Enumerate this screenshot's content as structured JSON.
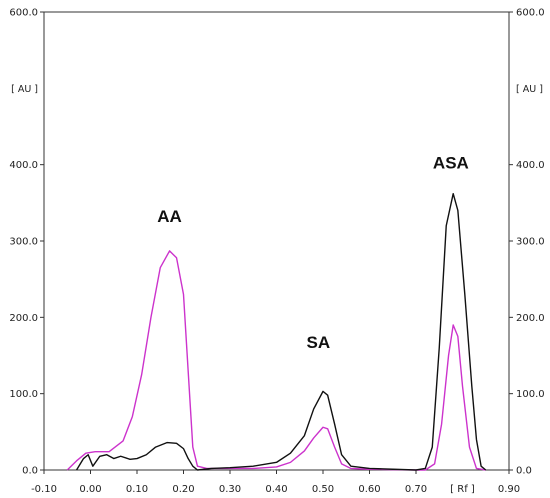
{
  "chart_data": {
    "type": "line",
    "xlabel": "[ Rf ]",
    "ylabel_left": "[ AU ]",
    "ylabel_right": "[ AU ]",
    "xlim": [
      -0.1,
      0.9
    ],
    "ylim": [
      0,
      600
    ],
    "x_ticks": [
      -0.1,
      0.0,
      0.1,
      0.2,
      0.3,
      0.4,
      0.5,
      0.6,
      0.7,
      0.9
    ],
    "x_tick_labels": [
      "-0.10",
      "0.00",
      "0.10",
      "0.20",
      "0.30",
      "0.40",
      "0.50",
      "0.60",
      "0.70",
      "0.90"
    ],
    "y_ticks": [
      0,
      100,
      200,
      300,
      400,
      600
    ],
    "y_tick_labels": [
      "0.0",
      "100.0",
      "200.0",
      "300.0",
      "400.0",
      "600.0"
    ],
    "annotations": [
      {
        "text": "AA",
        "x": 0.17,
        "y": 325
      },
      {
        "text": "SA",
        "x": 0.49,
        "y": 160
      },
      {
        "text": "ASA",
        "x": 0.775,
        "y": 395
      }
    ],
    "series": [
      {
        "color": "#cc33cc",
        "points": [
          [
            -0.05,
            0
          ],
          [
            -0.03,
            12
          ],
          [
            -0.01,
            22
          ],
          [
            0.01,
            24
          ],
          [
            0.04,
            24
          ],
          [
            0.07,
            38
          ],
          [
            0.09,
            70
          ],
          [
            0.11,
            125
          ],
          [
            0.13,
            200
          ],
          [
            0.15,
            265
          ],
          [
            0.17,
            287
          ],
          [
            0.185,
            278
          ],
          [
            0.2,
            230
          ],
          [
            0.21,
            130
          ],
          [
            0.22,
            30
          ],
          [
            0.23,
            5
          ],
          [
            0.25,
            2
          ],
          [
            0.3,
            2
          ],
          [
            0.35,
            2
          ],
          [
            0.4,
            4
          ],
          [
            0.43,
            10
          ],
          [
            0.46,
            25
          ],
          [
            0.48,
            42
          ],
          [
            0.5,
            56
          ],
          [
            0.51,
            54
          ],
          [
            0.525,
            30
          ],
          [
            0.54,
            8
          ],
          [
            0.56,
            2
          ],
          [
            0.6,
            1
          ],
          [
            0.7,
            0
          ],
          [
            0.72,
            0
          ],
          [
            0.74,
            8
          ],
          [
            0.755,
            60
          ],
          [
            0.77,
            150
          ],
          [
            0.78,
            190
          ],
          [
            0.79,
            175
          ],
          [
            0.8,
            110
          ],
          [
            0.815,
            30
          ],
          [
            0.83,
            2
          ],
          [
            0.85,
            0
          ]
        ]
      },
      {
        "color": "#111111",
        "points": [
          [
            -0.03,
            0
          ],
          [
            -0.015,
            15
          ],
          [
            -0.005,
            20
          ],
          [
            0.005,
            5
          ],
          [
            0.02,
            18
          ],
          [
            0.035,
            20
          ],
          [
            0.05,
            15
          ],
          [
            0.065,
            18
          ],
          [
            0.085,
            14
          ],
          [
            0.1,
            15
          ],
          [
            0.12,
            20
          ],
          [
            0.14,
            30
          ],
          [
            0.165,
            36
          ],
          [
            0.185,
            35
          ],
          [
            0.2,
            28
          ],
          [
            0.21,
            15
          ],
          [
            0.22,
            5
          ],
          [
            0.23,
            0
          ],
          [
            0.26,
            2
          ],
          [
            0.3,
            3
          ],
          [
            0.35,
            5
          ],
          [
            0.4,
            10
          ],
          [
            0.43,
            22
          ],
          [
            0.46,
            45
          ],
          [
            0.48,
            80
          ],
          [
            0.5,
            103
          ],
          [
            0.51,
            98
          ],
          [
            0.525,
            60
          ],
          [
            0.54,
            20
          ],
          [
            0.56,
            5
          ],
          [
            0.6,
            2
          ],
          [
            0.65,
            1
          ],
          [
            0.7,
            0
          ],
          [
            0.72,
            2
          ],
          [
            0.735,
            30
          ],
          [
            0.75,
            160
          ],
          [
            0.765,
            320
          ],
          [
            0.78,
            362
          ],
          [
            0.79,
            340
          ],
          [
            0.805,
            230
          ],
          [
            0.82,
            110
          ],
          [
            0.83,
            40
          ],
          [
            0.84,
            5
          ],
          [
            0.85,
            0
          ]
        ]
      }
    ]
  }
}
